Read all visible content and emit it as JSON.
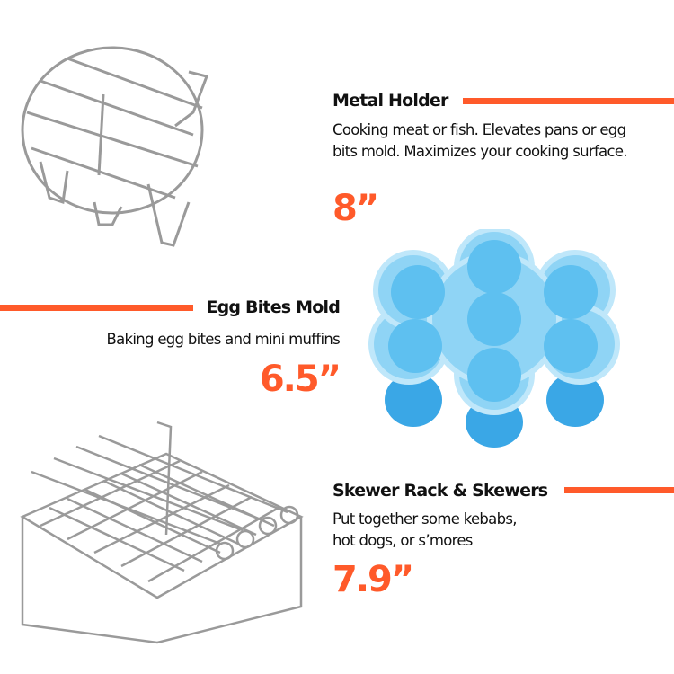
{
  "accent_color": "#ff5a2a",
  "products": [
    {
      "title": "Metal Holder",
      "description": "Cooking meat or fish. Elevates pans or egg bits mold. Maximizes your cooking surface.",
      "size": "8”",
      "image": "round-metal-rack"
    },
    {
      "title": "Egg Bites Mold",
      "description": "Baking egg bites and mini muffins",
      "size": "6.5”",
      "image": "blue-silicone-egg-mold"
    },
    {
      "title": "Skewer Rack & Skewers",
      "description": "Put together some kebabs, hot dogs, or s’mores",
      "size": "7.9”",
      "image": "square-skewer-rack"
    }
  ]
}
